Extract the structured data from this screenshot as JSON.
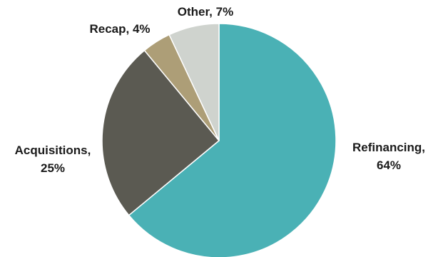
{
  "chart_data": {
    "type": "pie",
    "start_angle_deg": 0,
    "direction": "clockwise",
    "slices": [
      {
        "name": "Refinancing",
        "value": 64,
        "label_lines": [
          "Refinancing,",
          "64%"
        ],
        "color": "#4ab1b5"
      },
      {
        "name": "Acquisitions",
        "value": 25,
        "label_lines": [
          "Acquisitions,",
          "25%"
        ],
        "color": "#5b5a52"
      },
      {
        "name": "Recap",
        "value": 4,
        "label_lines": [
          "Recap, 4%"
        ],
        "color": "#ad9e77"
      },
      {
        "name": "Other",
        "value": 7,
        "label_lines": [
          "Other, 7%"
        ],
        "color": "#cfd3ce"
      }
    ]
  }
}
